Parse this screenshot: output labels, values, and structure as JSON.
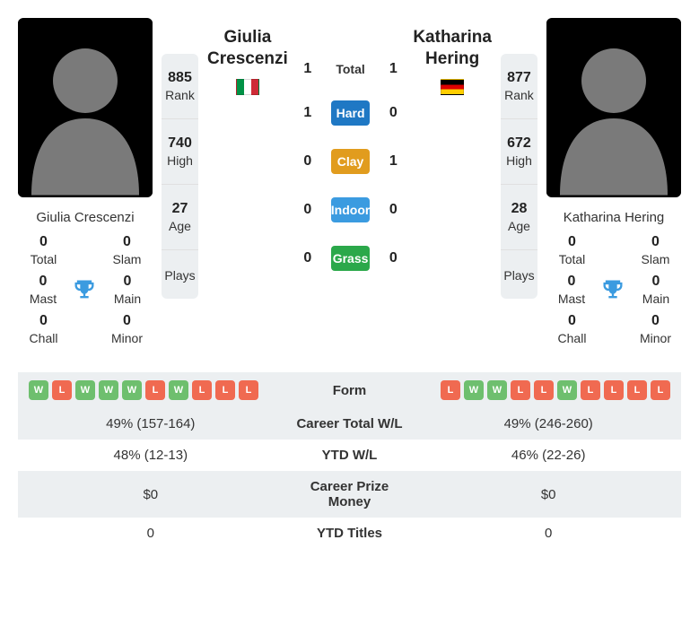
{
  "colors": {
    "win": "#6ebf6e",
    "loss": "#f06a51",
    "hard": "#1f78c4",
    "clay": "#e19c1e",
    "indoor": "#3b9be0",
    "grass": "#2ba84a",
    "trophy": "#3b9be0",
    "panel": "#eceff1"
  },
  "p1": {
    "name": "Giulia Crescenzi",
    "flag": "it",
    "titles": {
      "total": "0",
      "slam": "0",
      "mast": "0",
      "main": "0",
      "chall": "0",
      "minor": "0"
    },
    "stats": {
      "rank": "885",
      "high": "740",
      "age": "27",
      "plays": ""
    }
  },
  "p2": {
    "name": "Katharina Hering",
    "flag": "de",
    "titles": {
      "total": "0",
      "slam": "0",
      "mast": "0",
      "main": "0",
      "chall": "0",
      "minor": "0"
    },
    "stats": {
      "rank": "877",
      "high": "672",
      "age": "28",
      "plays": ""
    }
  },
  "labels": {
    "total": "Total",
    "slam": "Slam",
    "mast": "Mast",
    "main": "Main",
    "chall": "Chall",
    "minor": "Minor",
    "rank": "Rank",
    "high": "High",
    "age": "Age",
    "plays": "Plays"
  },
  "h2h": {
    "label_total": "Total",
    "total": {
      "p1": "1",
      "p2": "1"
    },
    "surfaces": [
      {
        "label": "Hard",
        "color": "#1f78c4",
        "p1": "1",
        "p2": "0"
      },
      {
        "label": "Clay",
        "color": "#e19c1e",
        "p1": "0",
        "p2": "1"
      },
      {
        "label": "Indoor",
        "color": "#3b9be0",
        "p1": "0",
        "p2": "0"
      },
      {
        "label": "Grass",
        "color": "#2ba84a",
        "p1": "0",
        "p2": "0"
      }
    ]
  },
  "form": {
    "label": "Form",
    "p1": [
      "W",
      "L",
      "W",
      "W",
      "W",
      "L",
      "W",
      "L",
      "L",
      "L"
    ],
    "p2": [
      "L",
      "W",
      "W",
      "L",
      "L",
      "W",
      "L",
      "L",
      "L",
      "L"
    ]
  },
  "rows": [
    {
      "label": "Career Total W/L",
      "p1": "49% (157-164)",
      "p2": "49% (246-260)"
    },
    {
      "label": "YTD W/L",
      "p1": "48% (12-13)",
      "p2": "46% (22-26)"
    },
    {
      "label": "Career Prize Money",
      "p1": "$0",
      "p2": "$0"
    },
    {
      "label": "YTD Titles",
      "p1": "0",
      "p2": "0"
    }
  ]
}
